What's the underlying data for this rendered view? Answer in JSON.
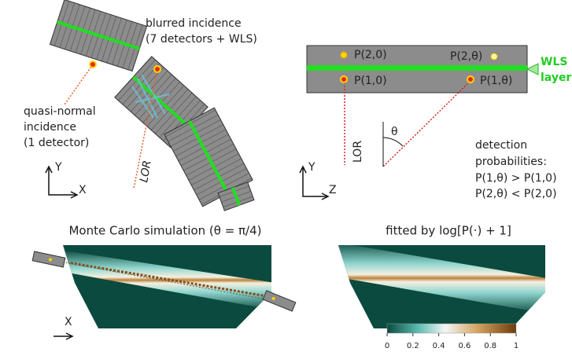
{
  "left_panel": {
    "blurred": [
      "blurred incidence",
      "(7 detectors + WLS)"
    ],
    "quasi_normal": [
      "quasi-normal",
      "incidence",
      "(1 detector)"
    ],
    "lor": "LOR",
    "axis_y": "Y",
    "axis_x": "X"
  },
  "right_panel": {
    "points": [
      "P(2,0)",
      "P(2,θ)",
      "P(1,0)",
      "P(1,θ)"
    ],
    "wls": [
      "WLS",
      "layer"
    ],
    "lor": "LOR",
    "theta": "θ",
    "detection": [
      "detection",
      "probabilities:",
      "P(1,θ) > P(1,0)",
      "P(2,θ) < P(2,0)"
    ],
    "axis_y": "Y",
    "axis_z": "Z"
  },
  "bottom": {
    "mc_title": "Monte Carlo simulation (θ = π/4)",
    "fit_title": "fitted by log[P(·) + 1]",
    "axis_x": "X",
    "colorbar_ticks": [
      0,
      0.2,
      0.4,
      0.6,
      0.8,
      1
    ]
  }
}
